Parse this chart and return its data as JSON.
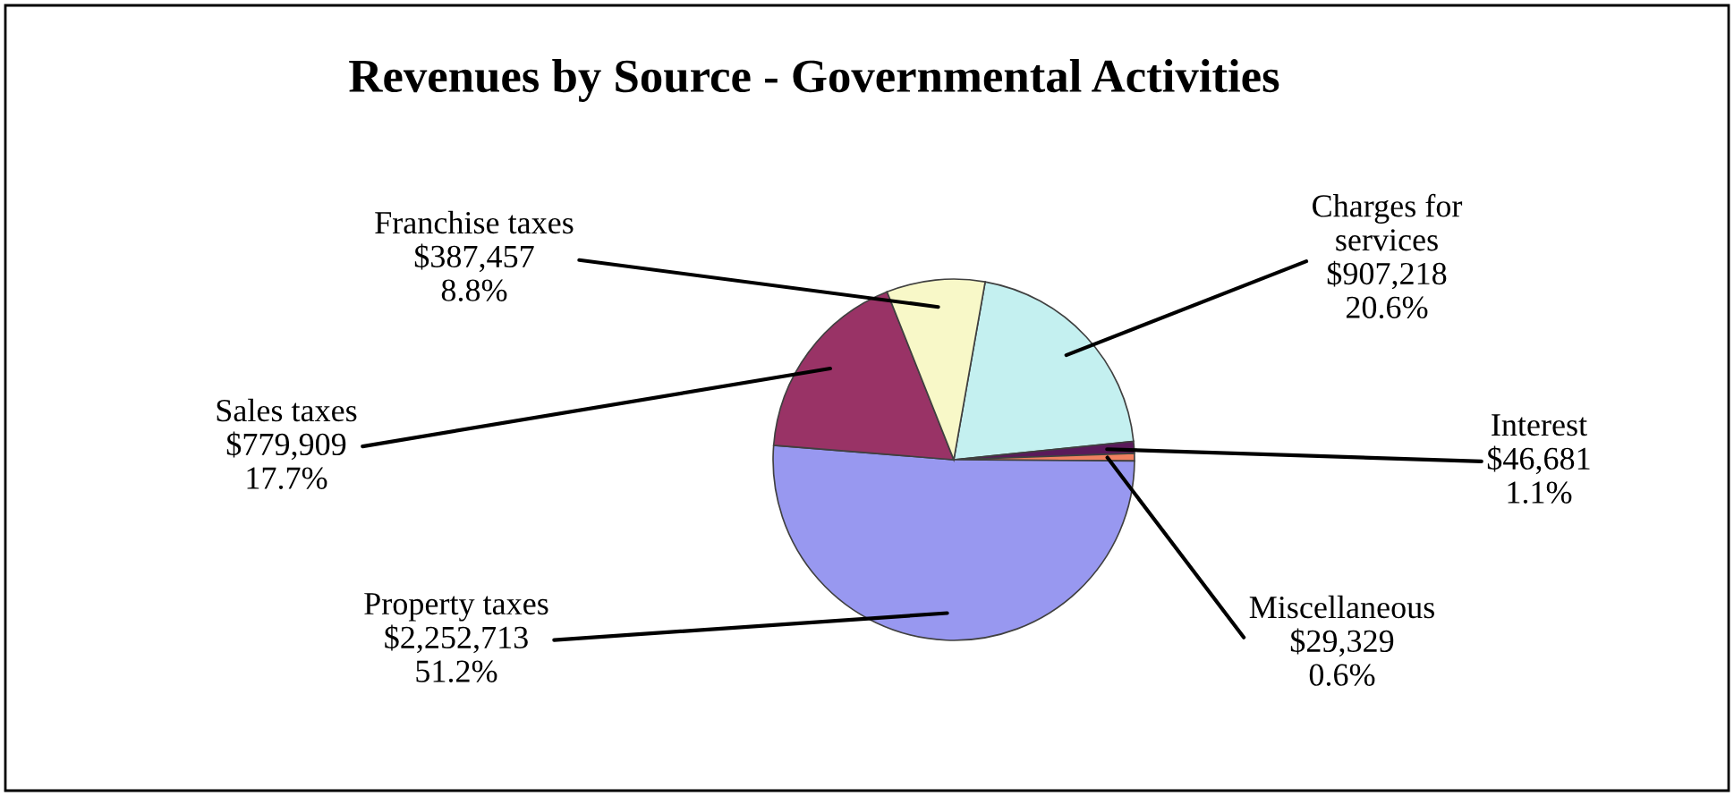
{
  "chart_data": {
    "type": "pie",
    "title": "Revenues by Source - Governmental Activities",
    "categories": [
      "Charges for\nservices",
      "Interest",
      "Miscellaneous",
      "Property taxes",
      "Sales taxes",
      "Franchise taxes"
    ],
    "values": [
      907218,
      46681,
      29329,
      2252713,
      779909,
      387457
    ],
    "value_labels": [
      "$907,218\n20.6%",
      "$46,681\n1.1%",
      "$29,329\n0.6%",
      "$2,252,713\n51.2%",
      "$779,909\n17.7%",
      "$387,457\n8.8%"
    ],
    "colors": [
      "#c4f0f0",
      "#5a1a5a",
      "#f08060",
      "#9898f0",
      "#993366",
      "#f8f8c8"
    ],
    "legend": false
  }
}
